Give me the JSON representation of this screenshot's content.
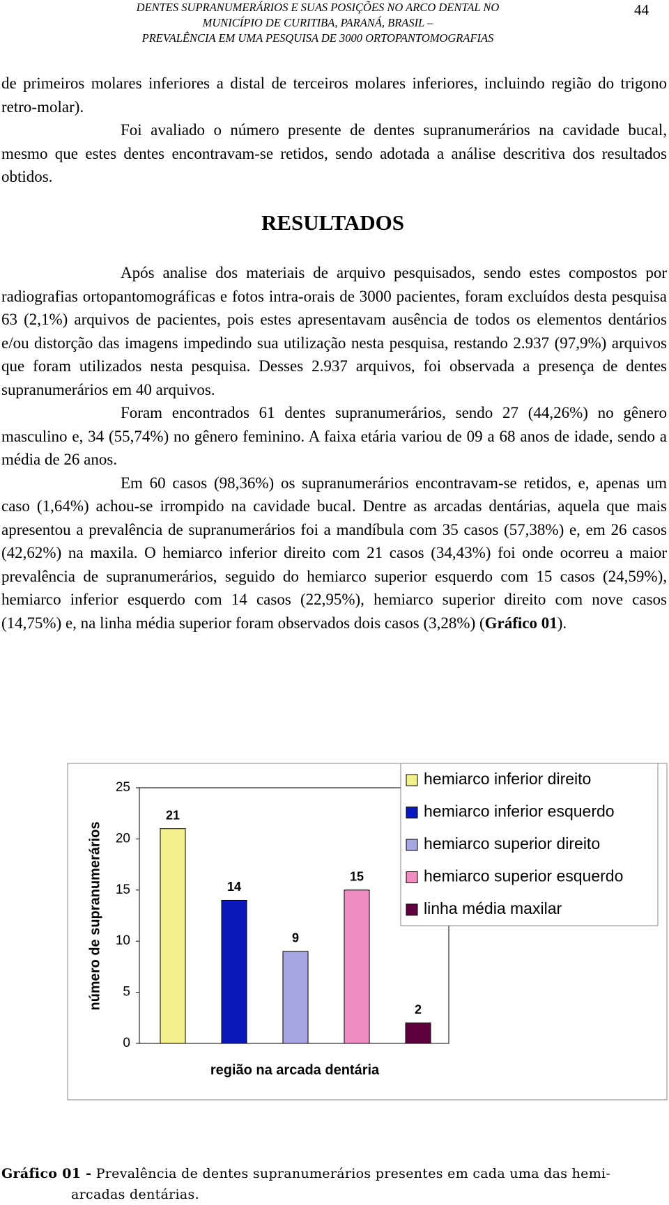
{
  "header": {
    "lines": [
      "DENTES SUPRANUMERÁRIOS E SUAS POSIÇÕES NO ARCO DENTAL NO",
      "MUNICÍPIO DE CURITIBA, PARANÁ, BRASIL –",
      "PREVALÊNCIA EM UMA PESQUISA DE 3000 ORTOPANTOMOGRAFIAS"
    ],
    "page_number": "44"
  },
  "intro": [
    {
      "indent": false,
      "parts": [
        {
          "text": "de primeiros molares inferiores a distal de terceiros molares inferiores, incluindo região do trigono retro-molar)."
        }
      ]
    },
    {
      "indent": true,
      "parts": [
        {
          "text": "Foi avaliado o número presente de dentes supranumerários na cavidade bucal, mesmo que estes dentes encontravam-se retidos, sendo adotada a análise descritiva dos resultados obtidos."
        }
      ]
    }
  ],
  "section_title": "RESULTADOS",
  "results": [
    {
      "indent": true,
      "parts": [
        {
          "text": "Após analise dos materiais de arquivo pesquisados, sendo estes compostos por radiografias ortopantomográficas e fotos intra-orais de 3000 pacientes, foram excluídos desta pesquisa 63 (2,1%) arquivos de pacientes, pois estes apresentavam ausência de todos os elementos dentários e/ou distorção das imagens impedindo sua utilização nesta pesquisa, restando 2.937 (97,9%) arquivos que foram utilizados nesta pesquisa.  Desses 2.937 arquivos, foi observada a presença de dentes supranumerários em 40 arquivos."
        }
      ]
    },
    {
      "indent": true,
      "parts": [
        {
          "text": "Foram encontrados 61 dentes supranumerários, sendo 27 (44,26%) no gênero masculino e, 34 (55,74%) no gênero feminino.  A faixa etária variou de 09 a 68 anos de idade, sendo a média de 26 anos."
        }
      ]
    },
    {
      "indent": true,
      "parts": [
        {
          "text": "Em 60 casos (98,36%) os supranumerários encontravam-se retidos, e, apenas um caso (1,64%) achou-se irrompido na cavidade bucal.  Dentre as arcadas dentárias, aquela que mais apresentou a prevalência de supranumerários foi a mandíbula com 35 casos (57,38%) e, em 26 casos (42,62%) na maxila.  O hemiarco inferior direito com 21 casos (34,43%) foi onde ocorreu a maior prevalência de supranumerários, seguido do hemiarco superior esquerdo com 15 casos (24,59%), hemiarco inferior esquerdo com 14 casos (22,95%), hemiarco superior direito com nove casos (14,75%) e, na linha média superior foram observados dois casos (3,28%) ("
        },
        {
          "text": "Gráfico 01",
          "bold": true
        },
        {
          "text": ")."
        }
      ]
    }
  ],
  "chart_data": {
    "type": "bar",
    "y_label": "número de supranumerários",
    "x_label": "região na arcada dentária",
    "ylim": [
      0,
      25
    ],
    "yticks": [
      0,
      5,
      10,
      15,
      20,
      25
    ],
    "series": [
      {
        "name": "hemiarco inferior direito",
        "color": "#f2f08a",
        "values": [
          21
        ]
      },
      {
        "name": "hemiarco inferior esquerdo",
        "color": "#0a1ab8",
        "values": [
          14
        ]
      },
      {
        "name": "hemiarco superior direito",
        "color": "#a6a6e0",
        "values": [
          9
        ]
      },
      {
        "name": "hemiarco superior esquerdo",
        "color": "#f08cc0",
        "values": [
          15
        ]
      },
      {
        "name": "linha média maxilar",
        "color": "#600040",
        "values": [
          2
        ]
      }
    ]
  },
  "caption": {
    "label": "Gráfico 01 -",
    "lines": [
      "Prevalência de dentes supranumerários presentes em cada uma das hemi-",
      "arcadas dentárias."
    ]
  }
}
